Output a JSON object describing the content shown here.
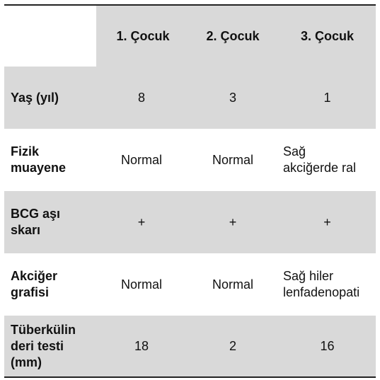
{
  "table": {
    "headers": [
      "1. Çocuk",
      "2. Çocuk",
      "3. Çocuk"
    ],
    "rows": [
      {
        "label": "Yaş (yıl)",
        "values": [
          "8",
          "3",
          "1"
        ]
      },
      {
        "label": "Fizik\nmuayene",
        "values": [
          "Normal",
          "Normal",
          "Sağ\nakciğerde ral"
        ]
      },
      {
        "label": "BCG aşı\nskarı",
        "values": [
          "+",
          "+",
          "+"
        ]
      },
      {
        "label": "Akciğer\ngrafisi",
        "values": [
          "Normal",
          "Normal",
          "Sağ hiler\nlenfadenopati"
        ]
      },
      {
        "label": "Tüberkülin\nderi testi\n(mm)",
        "values": [
          "18",
          "2",
          "16"
        ]
      }
    ]
  },
  "colors": {
    "shaded_row": "#d9d9d9",
    "rule": "#222222"
  }
}
